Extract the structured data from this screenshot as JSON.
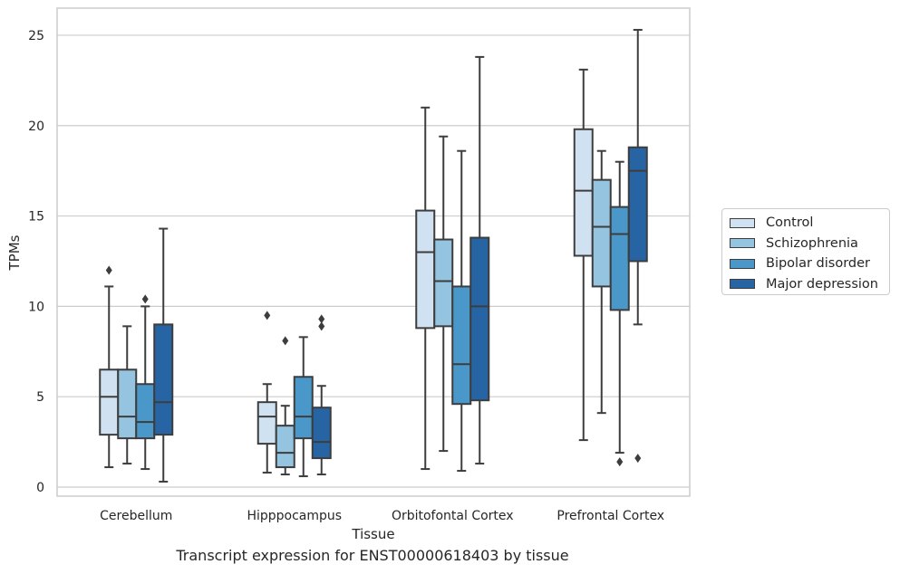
{
  "chart_data": {
    "type": "box",
    "title": "Transcript expression for ENST00000618403 by tissue",
    "xlabel": "Tissue",
    "ylabel": "TPMs",
    "categories": [
      "Cerebellum",
      "Hipppocampus",
      "Orbitofontal Cortex",
      "Prefrontal Cortex"
    ],
    "ylim": [
      -0.5,
      26.5
    ],
    "yticks": [
      0,
      5,
      10,
      15,
      20,
      25
    ],
    "grid": true,
    "legend_position": "right",
    "series": [
      {
        "name": "Control",
        "color": "#d0e1f2",
        "boxes": [
          {
            "whislo": 1.1,
            "q1": 2.9,
            "med": 5.0,
            "q3": 6.5,
            "whishi": 11.1,
            "fliers": [
              12.0
            ]
          },
          {
            "whislo": 0.8,
            "q1": 2.4,
            "med": 3.9,
            "q3": 4.7,
            "whishi": 5.7,
            "fliers": [
              9.5
            ]
          },
          {
            "whislo": 1.0,
            "q1": 8.8,
            "med": 13.0,
            "q3": 15.3,
            "whishi": 21.0,
            "fliers": []
          },
          {
            "whislo": 2.6,
            "q1": 12.8,
            "med": 16.4,
            "q3": 19.8,
            "whishi": 23.1,
            "fliers": []
          }
        ]
      },
      {
        "name": "Schizophrenia",
        "color": "#94c4df",
        "boxes": [
          {
            "whislo": 1.3,
            "q1": 2.7,
            "med": 3.9,
            "q3": 6.5,
            "whishi": 8.9,
            "fliers": []
          },
          {
            "whislo": 0.7,
            "q1": 1.1,
            "med": 1.9,
            "q3": 3.4,
            "whishi": 4.5,
            "fliers": [
              8.1
            ]
          },
          {
            "whislo": 2.0,
            "q1": 8.9,
            "med": 11.4,
            "q3": 13.7,
            "whishi": 19.4,
            "fliers": []
          },
          {
            "whislo": 4.1,
            "q1": 11.1,
            "med": 14.4,
            "q3": 17.0,
            "whishi": 18.6,
            "fliers": []
          }
        ]
      },
      {
        "name": "Bipolar disorder",
        "color": "#4a98c9",
        "boxes": [
          {
            "whislo": 1.0,
            "q1": 2.7,
            "med": 3.6,
            "q3": 5.7,
            "whishi": 10.0,
            "fliers": [
              10.4
            ]
          },
          {
            "whislo": 0.6,
            "q1": 2.7,
            "med": 3.9,
            "q3": 6.1,
            "whishi": 8.3,
            "fliers": []
          },
          {
            "whislo": 0.9,
            "q1": 4.6,
            "med": 6.8,
            "q3": 11.1,
            "whishi": 18.6,
            "fliers": []
          },
          {
            "whislo": 1.9,
            "q1": 9.8,
            "med": 14.0,
            "q3": 15.5,
            "whishi": 18.0,
            "fliers": [
              1.4
            ]
          }
        ]
      },
      {
        "name": "Major depression",
        "color": "#2764a3",
        "boxes": [
          {
            "whislo": 0.3,
            "q1": 2.9,
            "med": 4.7,
            "q3": 9.0,
            "whishi": 14.3,
            "fliers": []
          },
          {
            "whislo": 0.7,
            "q1": 1.6,
            "med": 2.5,
            "q3": 4.4,
            "whishi": 5.6,
            "fliers": [
              8.9,
              9.3
            ]
          },
          {
            "whislo": 1.3,
            "q1": 4.8,
            "med": 10.0,
            "q3": 13.8,
            "whishi": 23.8,
            "fliers": []
          },
          {
            "whislo": 9.0,
            "q1": 12.5,
            "med": 17.5,
            "q3": 18.8,
            "whishi": 25.3,
            "fliers": [
              1.6
            ]
          }
        ]
      }
    ]
  }
}
